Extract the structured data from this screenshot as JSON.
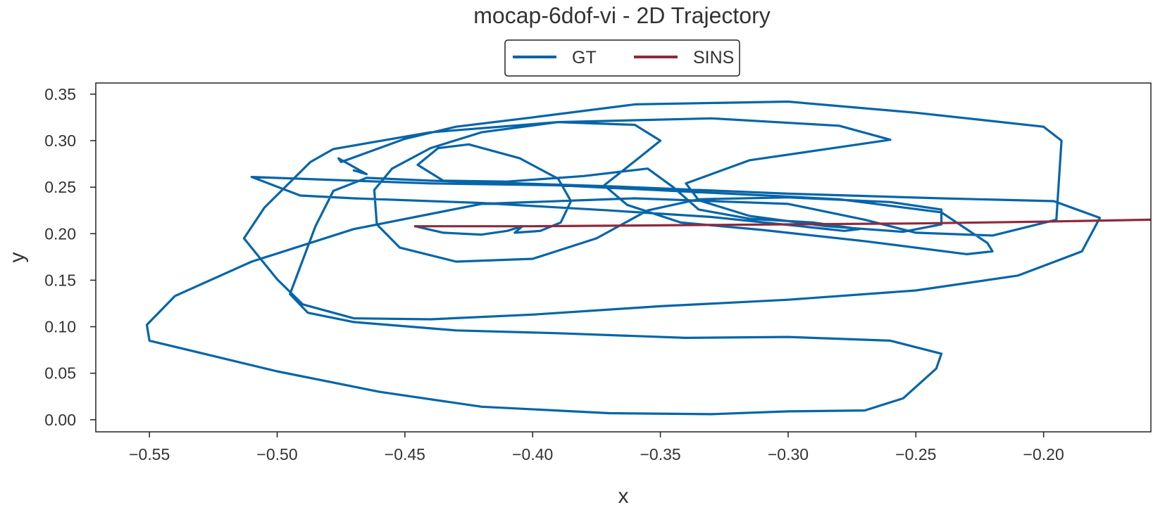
{
  "chart_data": {
    "type": "line",
    "title": "mocap-6dof-vi - 2D Trajectory",
    "xlabel": "x",
    "ylabel": "y",
    "xlim": [
      -0.571,
      -0.158
    ],
    "ylim": [
      -0.013,
      0.362
    ],
    "x_ticks": [
      -0.55,
      -0.5,
      -0.45,
      -0.4,
      -0.35,
      -0.3,
      -0.25,
      -0.2
    ],
    "x_tick_labels": [
      "−0.55",
      "−0.50",
      "−0.45",
      "−0.40",
      "−0.35",
      "−0.30",
      "−0.25",
      "−0.20"
    ],
    "y_ticks": [
      0.0,
      0.05,
      0.1,
      0.15,
      0.2,
      0.25,
      0.3,
      0.35
    ],
    "y_tick_labels": [
      "0.00",
      "0.05",
      "0.10",
      "0.15",
      "0.20",
      "0.25",
      "0.30",
      "0.35"
    ],
    "grid": false,
    "legend": "top-center, outside plot",
    "series": [
      {
        "name": "GT",
        "color": "#0565a8",
        "points": [
          [
            -0.446,
            0.208
          ],
          [
            -0.435,
            0.201
          ],
          [
            -0.42,
            0.199
          ],
          [
            -0.41,
            0.203
          ],
          [
            -0.404,
            0.208
          ],
          [
            -0.407,
            0.201
          ],
          [
            -0.397,
            0.203
          ],
          [
            -0.389,
            0.212
          ],
          [
            -0.385,
            0.235
          ],
          [
            -0.39,
            0.259
          ],
          [
            -0.405,
            0.281
          ],
          [
            -0.425,
            0.296
          ],
          [
            -0.437,
            0.292
          ],
          [
            -0.445,
            0.274
          ],
          [
            -0.435,
            0.257
          ],
          [
            -0.41,
            0.256
          ],
          [
            -0.38,
            0.262
          ],
          [
            -0.355,
            0.27
          ],
          [
            -0.345,
            0.25
          ],
          [
            -0.335,
            0.226
          ],
          [
            -0.315,
            0.216
          ],
          [
            -0.29,
            0.212
          ],
          [
            -0.272,
            0.205
          ],
          [
            -0.278,
            0.203
          ],
          [
            -0.295,
            0.208
          ],
          [
            -0.33,
            0.218
          ],
          [
            -0.37,
            0.225
          ],
          [
            -0.42,
            0.233
          ],
          [
            -0.47,
            0.238
          ],
          [
            -0.491,
            0.241
          ],
          [
            -0.51,
            0.261
          ],
          [
            -0.48,
            0.258
          ],
          [
            -0.44,
            0.254
          ],
          [
            -0.39,
            0.252
          ],
          [
            -0.33,
            0.244
          ],
          [
            -0.28,
            0.237
          ],
          [
            -0.24,
            0.223
          ],
          [
            -0.222,
            0.19
          ],
          [
            -0.22,
            0.181
          ],
          [
            -0.23,
            0.178
          ],
          [
            -0.27,
            0.192
          ],
          [
            -0.31,
            0.204
          ],
          [
            -0.342,
            0.212
          ],
          [
            -0.363,
            0.231
          ],
          [
            -0.372,
            0.252
          ],
          [
            -0.36,
            0.278
          ],
          [
            -0.35,
            0.3
          ],
          [
            -0.36,
            0.317
          ],
          [
            -0.39,
            0.32
          ],
          [
            -0.42,
            0.309
          ],
          [
            -0.44,
            0.292
          ],
          [
            -0.455,
            0.27
          ],
          [
            -0.462,
            0.247
          ],
          [
            -0.461,
            0.21
          ],
          [
            -0.452,
            0.185
          ],
          [
            -0.43,
            0.17
          ],
          [
            -0.4,
            0.173
          ],
          [
            -0.375,
            0.195
          ],
          [
            -0.355,
            0.225
          ],
          [
            -0.335,
            0.237
          ],
          [
            -0.3,
            0.239
          ],
          [
            -0.26,
            0.234
          ],
          [
            -0.24,
            0.226
          ],
          [
            -0.24,
            0.21
          ],
          [
            -0.255,
            0.202
          ],
          [
            -0.285,
            0.208
          ],
          [
            -0.315,
            0.219
          ],
          [
            -0.335,
            0.236
          ],
          [
            -0.34,
            0.254
          ],
          [
            -0.315,
            0.279
          ],
          [
            -0.28,
            0.293
          ],
          [
            -0.26,
            0.301
          ],
          [
            -0.28,
            0.316
          ],
          [
            -0.33,
            0.324
          ],
          [
            -0.39,
            0.32
          ],
          [
            -0.44,
            0.309
          ],
          [
            -0.478,
            0.291
          ],
          [
            -0.487,
            0.277
          ],
          [
            -0.505,
            0.228
          ],
          [
            -0.513,
            0.195
          ],
          [
            -0.5,
            0.151
          ],
          [
            -0.49,
            0.124
          ],
          [
            -0.47,
            0.109
          ],
          [
            -0.44,
            0.108
          ],
          [
            -0.4,
            0.113
          ],
          [
            -0.35,
            0.122
          ],
          [
            -0.3,
            0.129
          ],
          [
            -0.25,
            0.139
          ],
          [
            -0.21,
            0.155
          ],
          [
            -0.185,
            0.181
          ],
          [
            -0.178,
            0.217
          ],
          [
            -0.196,
            0.235
          ],
          [
            -0.24,
            0.238
          ],
          [
            -0.3,
            0.243
          ],
          [
            -0.37,
            0.251
          ],
          [
            -0.44,
            0.257
          ],
          [
            -0.465,
            0.26
          ],
          [
            -0.478,
            0.246
          ],
          [
            -0.485,
            0.208
          ],
          [
            -0.495,
            0.135
          ],
          [
            -0.488,
            0.115
          ],
          [
            -0.47,
            0.105
          ],
          [
            -0.43,
            0.096
          ],
          [
            -0.39,
            0.093
          ],
          [
            -0.34,
            0.088
          ],
          [
            -0.3,
            0.089
          ],
          [
            -0.26,
            0.085
          ],
          [
            -0.24,
            0.071
          ],
          [
            -0.242,
            0.055
          ],
          [
            -0.255,
            0.023
          ],
          [
            -0.27,
            0.01
          ],
          [
            -0.3,
            0.009
          ],
          [
            -0.33,
            0.006
          ],
          [
            -0.37,
            0.007
          ],
          [
            -0.42,
            0.014
          ],
          [
            -0.46,
            0.03
          ],
          [
            -0.5,
            0.052
          ],
          [
            -0.55,
            0.085
          ],
          [
            -0.551,
            0.102
          ],
          [
            -0.54,
            0.133
          ],
          [
            -0.51,
            0.17
          ],
          [
            -0.47,
            0.205
          ],
          [
            -0.42,
            0.232
          ],
          [
            -0.36,
            0.238
          ],
          [
            -0.3,
            0.232
          ],
          [
            -0.27,
            0.215
          ],
          [
            -0.25,
            0.201
          ],
          [
            -0.22,
            0.198
          ],
          [
            -0.195,
            0.215
          ],
          [
            -0.193,
            0.3
          ],
          [
            -0.2,
            0.315
          ],
          [
            -0.25,
            0.33
          ],
          [
            -0.3,
            0.342
          ],
          [
            -0.36,
            0.339
          ],
          [
            -0.4,
            0.325
          ],
          [
            -0.43,
            0.315
          ],
          [
            -0.45,
            0.302
          ],
          [
            -0.464,
            0.288
          ],
          [
            -0.475,
            0.277
          ],
          [
            -0.476,
            0.281
          ],
          [
            -0.465,
            0.264
          ],
          [
            -0.47,
            0.268
          ]
        ]
      },
      {
        "name": "SINS",
        "color": "#8e2a3c",
        "points": [
          [
            -0.446,
            0.208
          ],
          [
            -0.4,
            0.208
          ],
          [
            -0.35,
            0.209
          ],
          [
            -0.3,
            0.21
          ],
          [
            -0.25,
            0.211
          ],
          [
            -0.2,
            0.213
          ],
          [
            -0.158,
            0.215
          ]
        ]
      }
    ]
  }
}
